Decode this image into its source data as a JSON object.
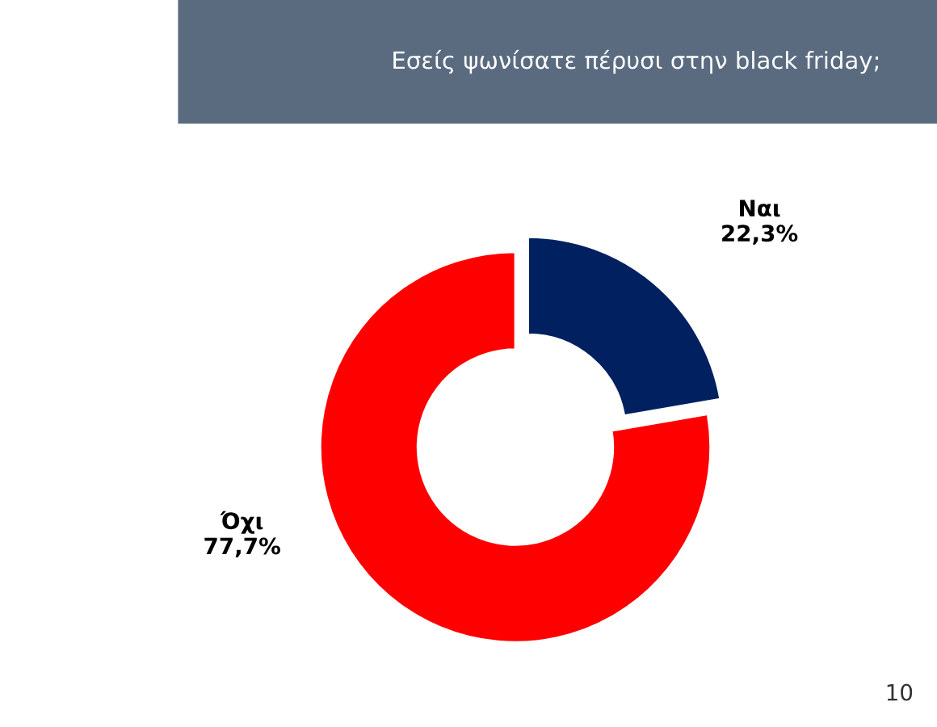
{
  "chart_data": {
    "type": "donut",
    "title": "Εσείς ψωνίσατε πέρυσι στην black friday;",
    "categories": [
      "Ναι",
      "Όχι"
    ],
    "values": [
      22.3,
      77.7
    ],
    "value_labels": [
      "22,3%",
      "77,7%"
    ],
    "colors": [
      "#002060",
      "#ff0000"
    ],
    "legend": false,
    "annotations": [
      "10"
    ]
  }
}
